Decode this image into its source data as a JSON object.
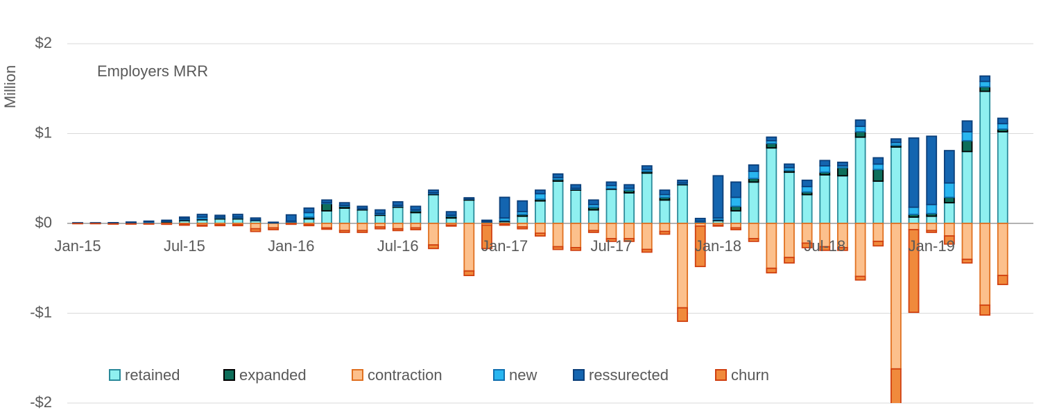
{
  "chart_data": {
    "type": "stacked_bar",
    "title": "Employers MRR",
    "y_label": "Million",
    "categories": [
      "Jan-15",
      null,
      null,
      null,
      null,
      null,
      "Jul-15",
      null,
      null,
      null,
      null,
      null,
      "Jan-16",
      null,
      null,
      null,
      null,
      null,
      "Jul-16",
      null,
      null,
      null,
      null,
      null,
      "Jan-17",
      null,
      null,
      null,
      null,
      null,
      "Jul-17",
      null,
      null,
      null,
      null,
      null,
      "Jan-18",
      null,
      null,
      null,
      null,
      null,
      "Jul-18",
      null,
      null,
      null,
      null,
      null,
      "Jan-19",
      null,
      null,
      null,
      null
    ],
    "ylim": [
      -2,
      2.45
    ],
    "yticks": [
      {
        "value": -2,
        "label": "-$2"
      },
      {
        "value": -1,
        "label": "-$1"
      },
      {
        "value": 0,
        "label": "$0"
      },
      {
        "value": 1,
        "label": "$1"
      },
      {
        "value": 2,
        "label": "$2"
      }
    ],
    "grid": true,
    "series": [
      {
        "name": "retained",
        "color": "#8ff0f0",
        "stroke": "#2a8a9a",
        "values": [
          0.003,
          0.003,
          0.003,
          0.005,
          0.01,
          0.015,
          0.03,
          0.04,
          0.05,
          0.05,
          0.03,
          0.005,
          0.01,
          0.05,
          0.14,
          0.17,
          0.15,
          0.09,
          0.18,
          0.12,
          0.32,
          0.06,
          0.26,
          0.01,
          0.02,
          0.08,
          0.25,
          0.47,
          0.37,
          0.15,
          0.38,
          0.34,
          0.56,
          0.26,
          0.43,
          0.01,
          0.03,
          0.14,
          0.46,
          0.84,
          0.57,
          0.32,
          0.54,
          0.53,
          0.96,
          0.47,
          0.85,
          0.07,
          0.08,
          0.23,
          0.8,
          1.47,
          1.02
        ]
      },
      {
        "name": "expanded",
        "color": "#0e6e5a",
        "stroke": "#000000",
        "values": [
          0,
          0,
          0,
          0,
          0,
          0.005,
          0.01,
          0.01,
          0.01,
          0.01,
          0.005,
          0,
          0.005,
          0.02,
          0.08,
          0.02,
          0.01,
          0.01,
          0.01,
          0.02,
          0.01,
          0.02,
          0.01,
          0.005,
          0.01,
          0.02,
          0.02,
          0.02,
          0.01,
          0.03,
          0.01,
          0.03,
          0.02,
          0.03,
          0.01,
          0.005,
          0.01,
          0.05,
          0.04,
          0.05,
          0.02,
          0.03,
          0.03,
          0.09,
          0.06,
          0.13,
          0.02,
          0.03,
          0.03,
          0.06,
          0.12,
          0.05,
          0.03
        ]
      },
      {
        "name": "contraction",
        "color": "#fcc08c",
        "stroke": "#e07020",
        "values": [
          -0.002,
          -0.002,
          -0.005,
          -0.005,
          -0.005,
          -0.005,
          -0.01,
          -0.02,
          -0.015,
          -0.015,
          -0.06,
          -0.05,
          -0.005,
          -0.015,
          -0.05,
          -0.08,
          -0.08,
          -0.04,
          -0.06,
          -0.05,
          -0.24,
          -0.02,
          -0.53,
          -0.02,
          -0.01,
          -0.04,
          -0.11,
          -0.26,
          -0.27,
          -0.08,
          -0.17,
          -0.17,
          -0.29,
          -0.09,
          -0.94,
          -0.03,
          -0.02,
          -0.05,
          -0.17,
          -0.5,
          -0.38,
          -0.22,
          -0.26,
          -0.27,
          -0.59,
          -0.2,
          -1.62,
          -0.07,
          -0.08,
          -0.14,
          -0.4,
          -0.91,
          -0.58
        ]
      },
      {
        "name": "new",
        "color": "#29b6f0",
        "stroke": "#1070b0",
        "values": [
          0.002,
          0.002,
          0.003,
          0.005,
          0.01,
          0.005,
          0.01,
          0.02,
          0.01,
          0.01,
          0.005,
          0.003,
          0.01,
          0.05,
          0.01,
          0.01,
          0.005,
          0.01,
          0.01,
          0.01,
          0.01,
          0.01,
          0.005,
          0.005,
          0.03,
          0.03,
          0.06,
          0.02,
          0.01,
          0.03,
          0.03,
          0.02,
          0.02,
          0.03,
          0.01,
          0.01,
          0.02,
          0.1,
          0.08,
          0.03,
          0.03,
          0.06,
          0.07,
          0.02,
          0.06,
          0.06,
          0.03,
          0.08,
          0.1,
          0.16,
          0.1,
          0.06,
          0.06
        ]
      },
      {
        "name": "ressurected",
        "color": "#1465b0",
        "stroke": "#0b3f7a",
        "values": [
          0.002,
          0.002,
          0.002,
          0.005,
          0.005,
          0.01,
          0.02,
          0.03,
          0.02,
          0.03,
          0.02,
          0.005,
          0.07,
          0.05,
          0.03,
          0.03,
          0.025,
          0.04,
          0.04,
          0.04,
          0.03,
          0.04,
          0.01,
          0.015,
          0.23,
          0.12,
          0.04,
          0.04,
          0.04,
          0.05,
          0.04,
          0.04,
          0.04,
          0.05,
          0.03,
          0.03,
          0.47,
          0.17,
          0.07,
          0.04,
          0.04,
          0.07,
          0.06,
          0.04,
          0.07,
          0.07,
          0.04,
          0.77,
          0.76,
          0.36,
          0.12,
          0.06,
          0.06
        ]
      },
      {
        "name": "churn",
        "color": "#f08a3c",
        "stroke": "#d04010",
        "values": [
          -0.001,
          -0.001,
          -0.003,
          -0.003,
          -0.003,
          -0.005,
          -0.01,
          -0.01,
          -0.01,
          -0.01,
          -0.03,
          -0.02,
          -0.005,
          -0.01,
          -0.015,
          -0.02,
          -0.02,
          -0.02,
          -0.02,
          -0.02,
          -0.04,
          -0.01,
          -0.05,
          -0.26,
          -0.01,
          -0.02,
          -0.03,
          -0.03,
          -0.03,
          -0.02,
          -0.03,
          -0.03,
          -0.03,
          -0.03,
          -0.15,
          -0.45,
          -0.01,
          -0.02,
          -0.03,
          -0.05,
          -0.06,
          -0.05,
          -0.04,
          -0.03,
          -0.04,
          -0.05,
          -0.5,
          -0.92,
          -0.02,
          -0.09,
          -0.04,
          -0.11,
          -0.1
        ]
      }
    ]
  }
}
